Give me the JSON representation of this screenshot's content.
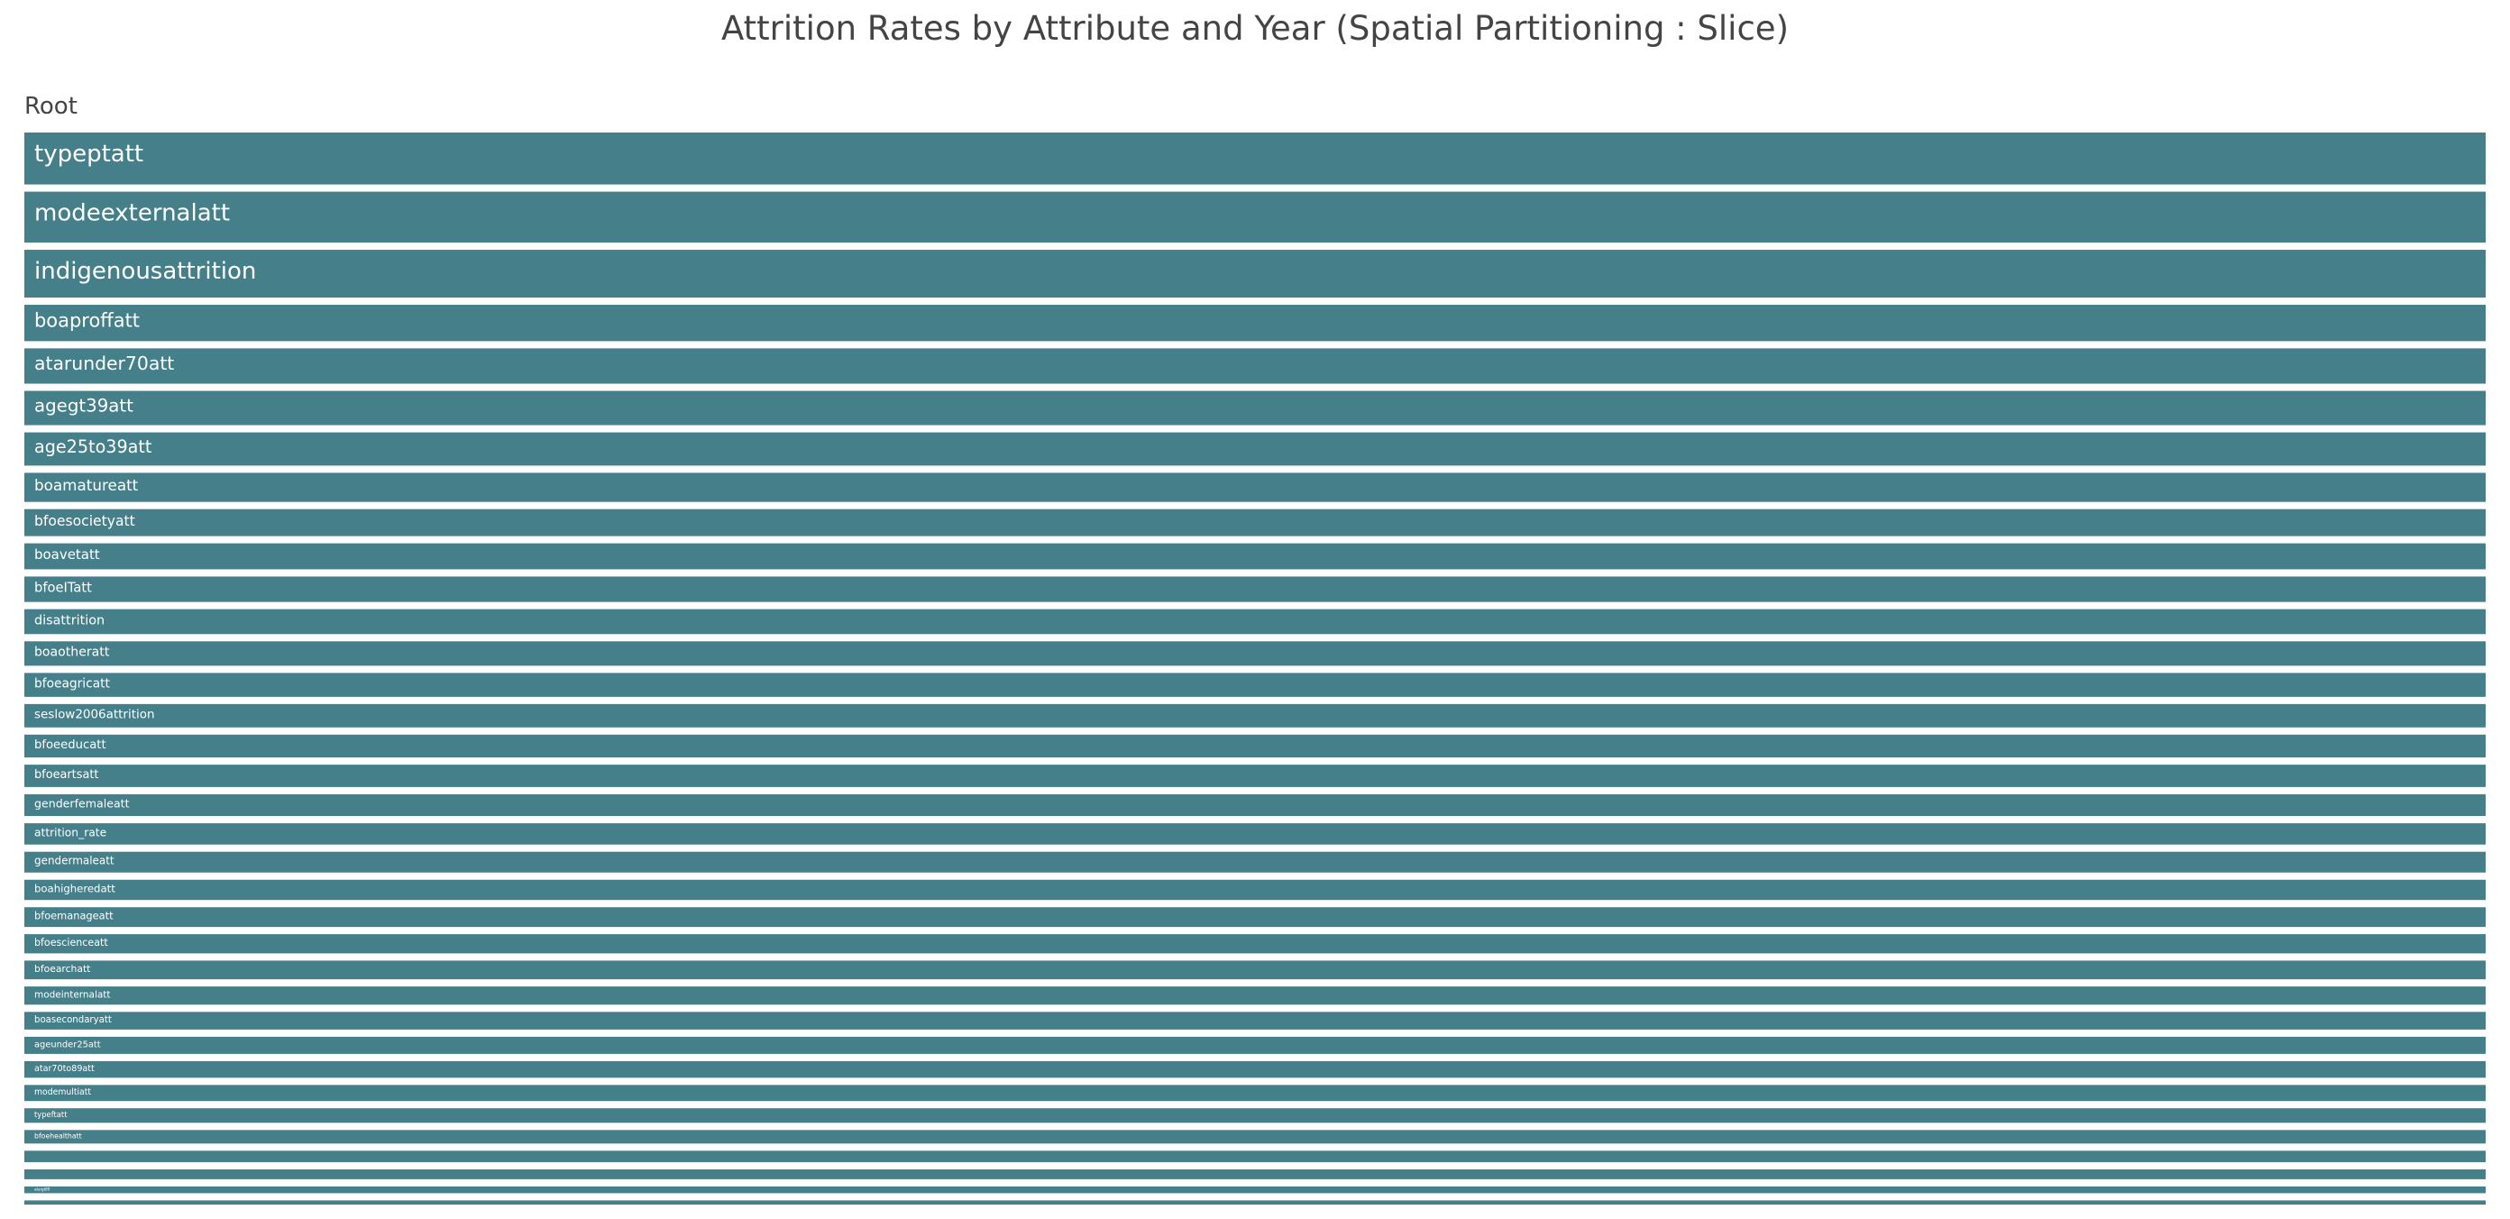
{
  "chart_data": {
    "type": "treemap",
    "title": "Attrition Rates by Attribute and Year (Spatial Partitioning : Slice)",
    "root_label": "Root",
    "tile_color": "#457f89",
    "items": [
      {
        "label": "typeptatt",
        "value": 100
      },
      {
        "label": "modeexternalatt",
        "value": 98
      },
      {
        "label": "indigenousattrition",
        "value": 92
      },
      {
        "label": "boaproffatt",
        "value": 70
      },
      {
        "label": "atarunder70att",
        "value": 68
      },
      {
        "label": "agegt39att",
        "value": 66
      },
      {
        "label": "age25to39att",
        "value": 64
      },
      {
        "label": "boamatureatt",
        "value": 56
      },
      {
        "label": "bfoesocietyatt",
        "value": 52
      },
      {
        "label": "boavetatt",
        "value": 50
      },
      {
        "label": "bfoeITatt",
        "value": 49
      },
      {
        "label": "disattrition",
        "value": 48
      },
      {
        "label": "boaotheratt",
        "value": 47
      },
      {
        "label": "bfoeagricatt",
        "value": 46
      },
      {
        "label": "seslow2006attrition",
        "value": 45
      },
      {
        "label": "bfoeeducatt",
        "value": 44
      },
      {
        "label": "bfoeartsatt",
        "value": 43
      },
      {
        "label": "genderfemaleatt",
        "value": 42
      },
      {
        "label": "attrition_rate",
        "value": 41
      },
      {
        "label": "gendermaleatt",
        "value": 40
      },
      {
        "label": "boahigheredatt",
        "value": 39
      },
      {
        "label": "bfoemanageatt",
        "value": 38
      },
      {
        "label": "bfoescienceatt",
        "value": 37
      },
      {
        "label": "bfoearchatt",
        "value": 36
      },
      {
        "label": "modeinternalatt",
        "value": 35
      },
      {
        "label": "boasecondaryatt",
        "value": 34
      },
      {
        "label": "ageunder25att",
        "value": 33
      },
      {
        "label": "atar70to89att",
        "value": 32
      },
      {
        "label": "modemultiatt",
        "value": 31
      },
      {
        "label": "typeftatt",
        "value": 28
      },
      {
        "label": "bfoehealthatt",
        "value": 26
      },
      {
        "label": "",
        "value": 22
      },
      {
        "label": "",
        "value": 19
      },
      {
        "label": "atargt89",
        "value": 13
      },
      {
        "label": "",
        "value": 8
      }
    ]
  }
}
